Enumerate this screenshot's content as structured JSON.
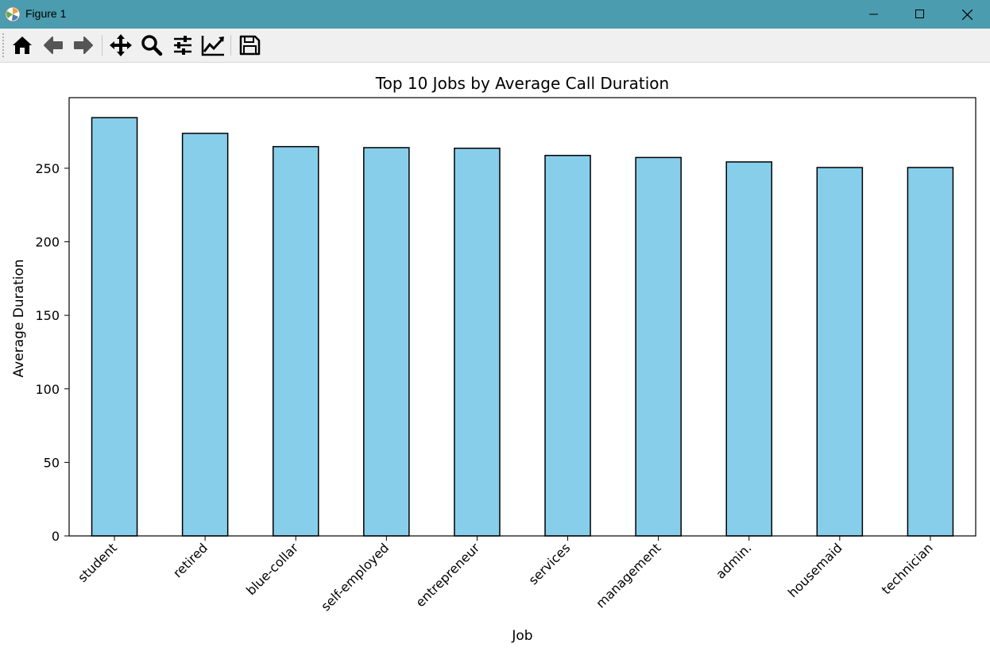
{
  "window": {
    "title": "Figure 1",
    "titlebar_color": "#4a9cae",
    "controls": [
      "minimize-icon",
      "maximize-icon",
      "close-icon"
    ]
  },
  "toolbar": {
    "buttons": [
      {
        "icon": "home-icon"
      },
      {
        "icon": "back-arrow-icon"
      },
      {
        "icon": "forward-arrow-icon"
      },
      {
        "icon": "pan-icon"
      },
      {
        "icon": "zoom-icon"
      },
      {
        "icon": "configure-subplots-icon"
      },
      {
        "icon": "edit-axis-icon"
      },
      {
        "icon": "save-icon"
      }
    ]
  },
  "chart_data": {
    "type": "bar",
    "title": "Top 10 Jobs by Average Call Duration",
    "xlabel": "Job",
    "ylabel": "Average Duration",
    "categories": [
      "student",
      "retired",
      "blue-collar",
      "self-employed",
      "entrepreneur",
      "services",
      "management",
      "admin.",
      "housemaid",
      "technician"
    ],
    "values": [
      284.4,
      273.7,
      264.7,
      264.0,
      263.6,
      258.7,
      257.3,
      254.3,
      250.5,
      250.5
    ],
    "ylim": [
      0,
      298
    ],
    "yticks": [
      "0",
      "50",
      "100",
      "150",
      "200",
      "250"
    ],
    "bar_color": "#87ceeb",
    "edge_color": "#000000",
    "grid": false,
    "legend": "none"
  }
}
